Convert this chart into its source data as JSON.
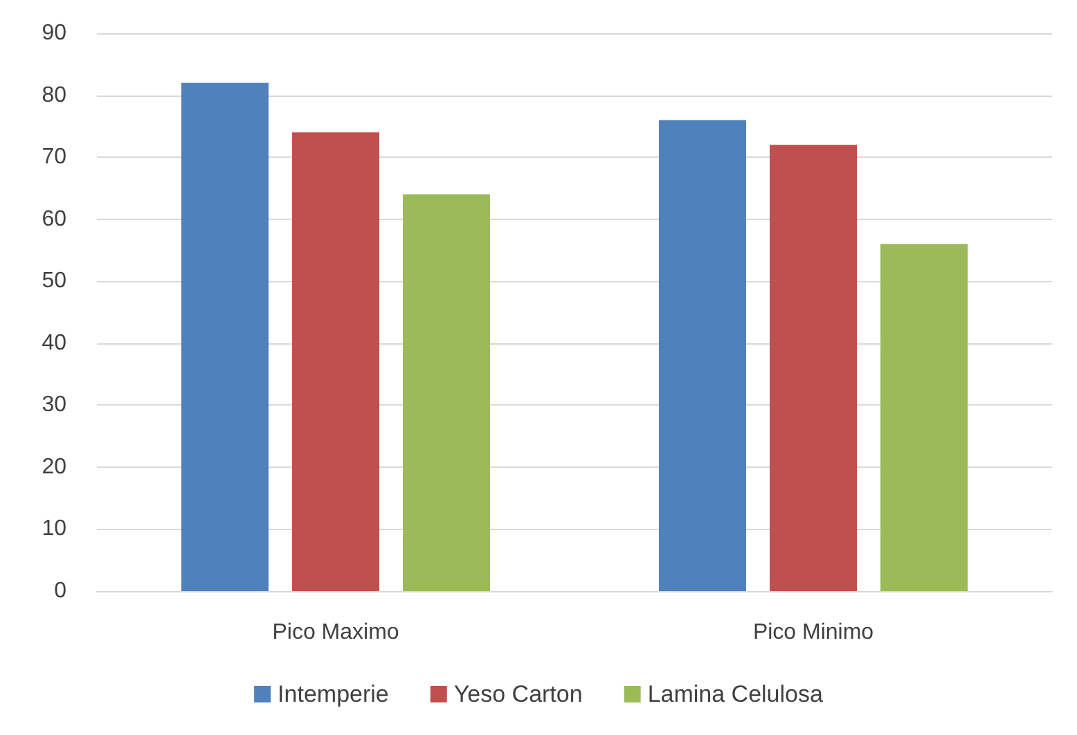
{
  "chart_data": {
    "type": "bar",
    "categories": [
      "Pico Maximo",
      "Pico Minimo"
    ],
    "series": [
      {
        "name": "Intemperie",
        "color": "#4f81bd",
        "values": [
          82,
          76
        ]
      },
      {
        "name": "Yeso Carton",
        "color": "#c0504d",
        "values": [
          74,
          72
        ]
      },
      {
        "name": "Lamina Celulosa",
        "color": "#9bbb59",
        "values": [
          64,
          56
        ]
      }
    ],
    "ylim": [
      0,
      90
    ],
    "yticks": [
      0,
      10,
      20,
      30,
      40,
      50,
      60,
      70,
      80,
      90
    ],
    "grid": "y",
    "legend": "bottom"
  }
}
